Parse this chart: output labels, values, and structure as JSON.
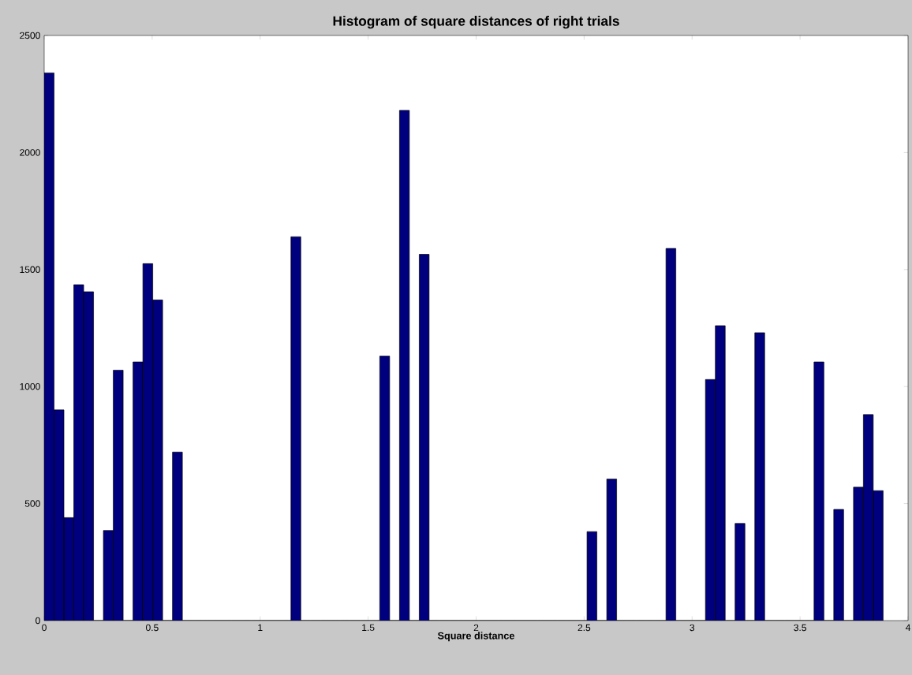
{
  "chart_data": {
    "type": "histogram",
    "title": "Histogram of square distances of right trials",
    "xlabel": "Square distance",
    "bins": [
      0,
      0.0457,
      0.0914,
      0.1371,
      0.1828,
      0.2285,
      0.2742,
      0.3199,
      0.3656,
      0.4113,
      0.457,
      0.5027,
      0.5484,
      0.5941,
      0.6398,
      0.6855,
      0.7312,
      0.7769,
      0.8226,
      0.8683,
      0.914,
      0.9597,
      1.0054,
      1.0511,
      1.0968,
      1.1425,
      1.1882,
      1.2339,
      1.2796,
      1.3253,
      1.371,
      1.4167,
      1.4624,
      1.5081,
      1.5538,
      1.5995,
      1.6452,
      1.6909,
      1.7366,
      1.7823,
      1.828,
      1.8737,
      1.9194,
      1.9651,
      2.0108,
      2.0565,
      2.1022,
      2.1479,
      2.1936,
      2.2393,
      2.285,
      2.3307,
      2.3764,
      2.4221,
      2.4678,
      2.5135,
      2.5592,
      2.6049,
      2.6506,
      2.6963,
      2.742,
      2.7877,
      2.8334,
      2.8791,
      2.9248,
      2.9705,
      3.0162,
      3.0619,
      3.1076,
      3.1533,
      3.199,
      3.2447,
      3.2904,
      3.3361,
      3.3818,
      3.4275,
      3.4732,
      3.5189,
      3.5646,
      3.6103,
      3.656,
      3.7017,
      3.7474,
      3.7931,
      3.8388,
      3.8845
    ],
    "values": [
      2340,
      900,
      440,
      1435,
      1405,
      0,
      385,
      1070,
      0,
      1105,
      1525,
      1370,
      0,
      720,
      0,
      0,
      0,
      0,
      0,
      0,
      0,
      0,
      0,
      0,
      0,
      1640,
      0,
      0,
      0,
      0,
      0,
      0,
      0,
      0,
      1130,
      0,
      2180,
      0,
      1565,
      0,
      0,
      0,
      0,
      0,
      0,
      0,
      0,
      0,
      0,
      0,
      0,
      0,
      0,
      0,
      0,
      380,
      0,
      605,
      0,
      0,
      0,
      0,
      0,
      1590,
      0,
      0,
      0,
      1030,
      1260,
      0,
      415,
      0,
      1230,
      0,
      0,
      0,
      0,
      0,
      1105,
      0,
      475,
      0,
      570,
      880,
      555
    ],
    "color": "#00007f",
    "xlim": [
      0,
      4
    ],
    "ylim": [
      0,
      2500
    ],
    "xticks": [
      0,
      0.5,
      1,
      1.5,
      2,
      2.5,
      3,
      3.5,
      4
    ],
    "yticks": [
      0,
      500,
      1000,
      1500,
      2000,
      2500
    ],
    "grid": false
  }
}
